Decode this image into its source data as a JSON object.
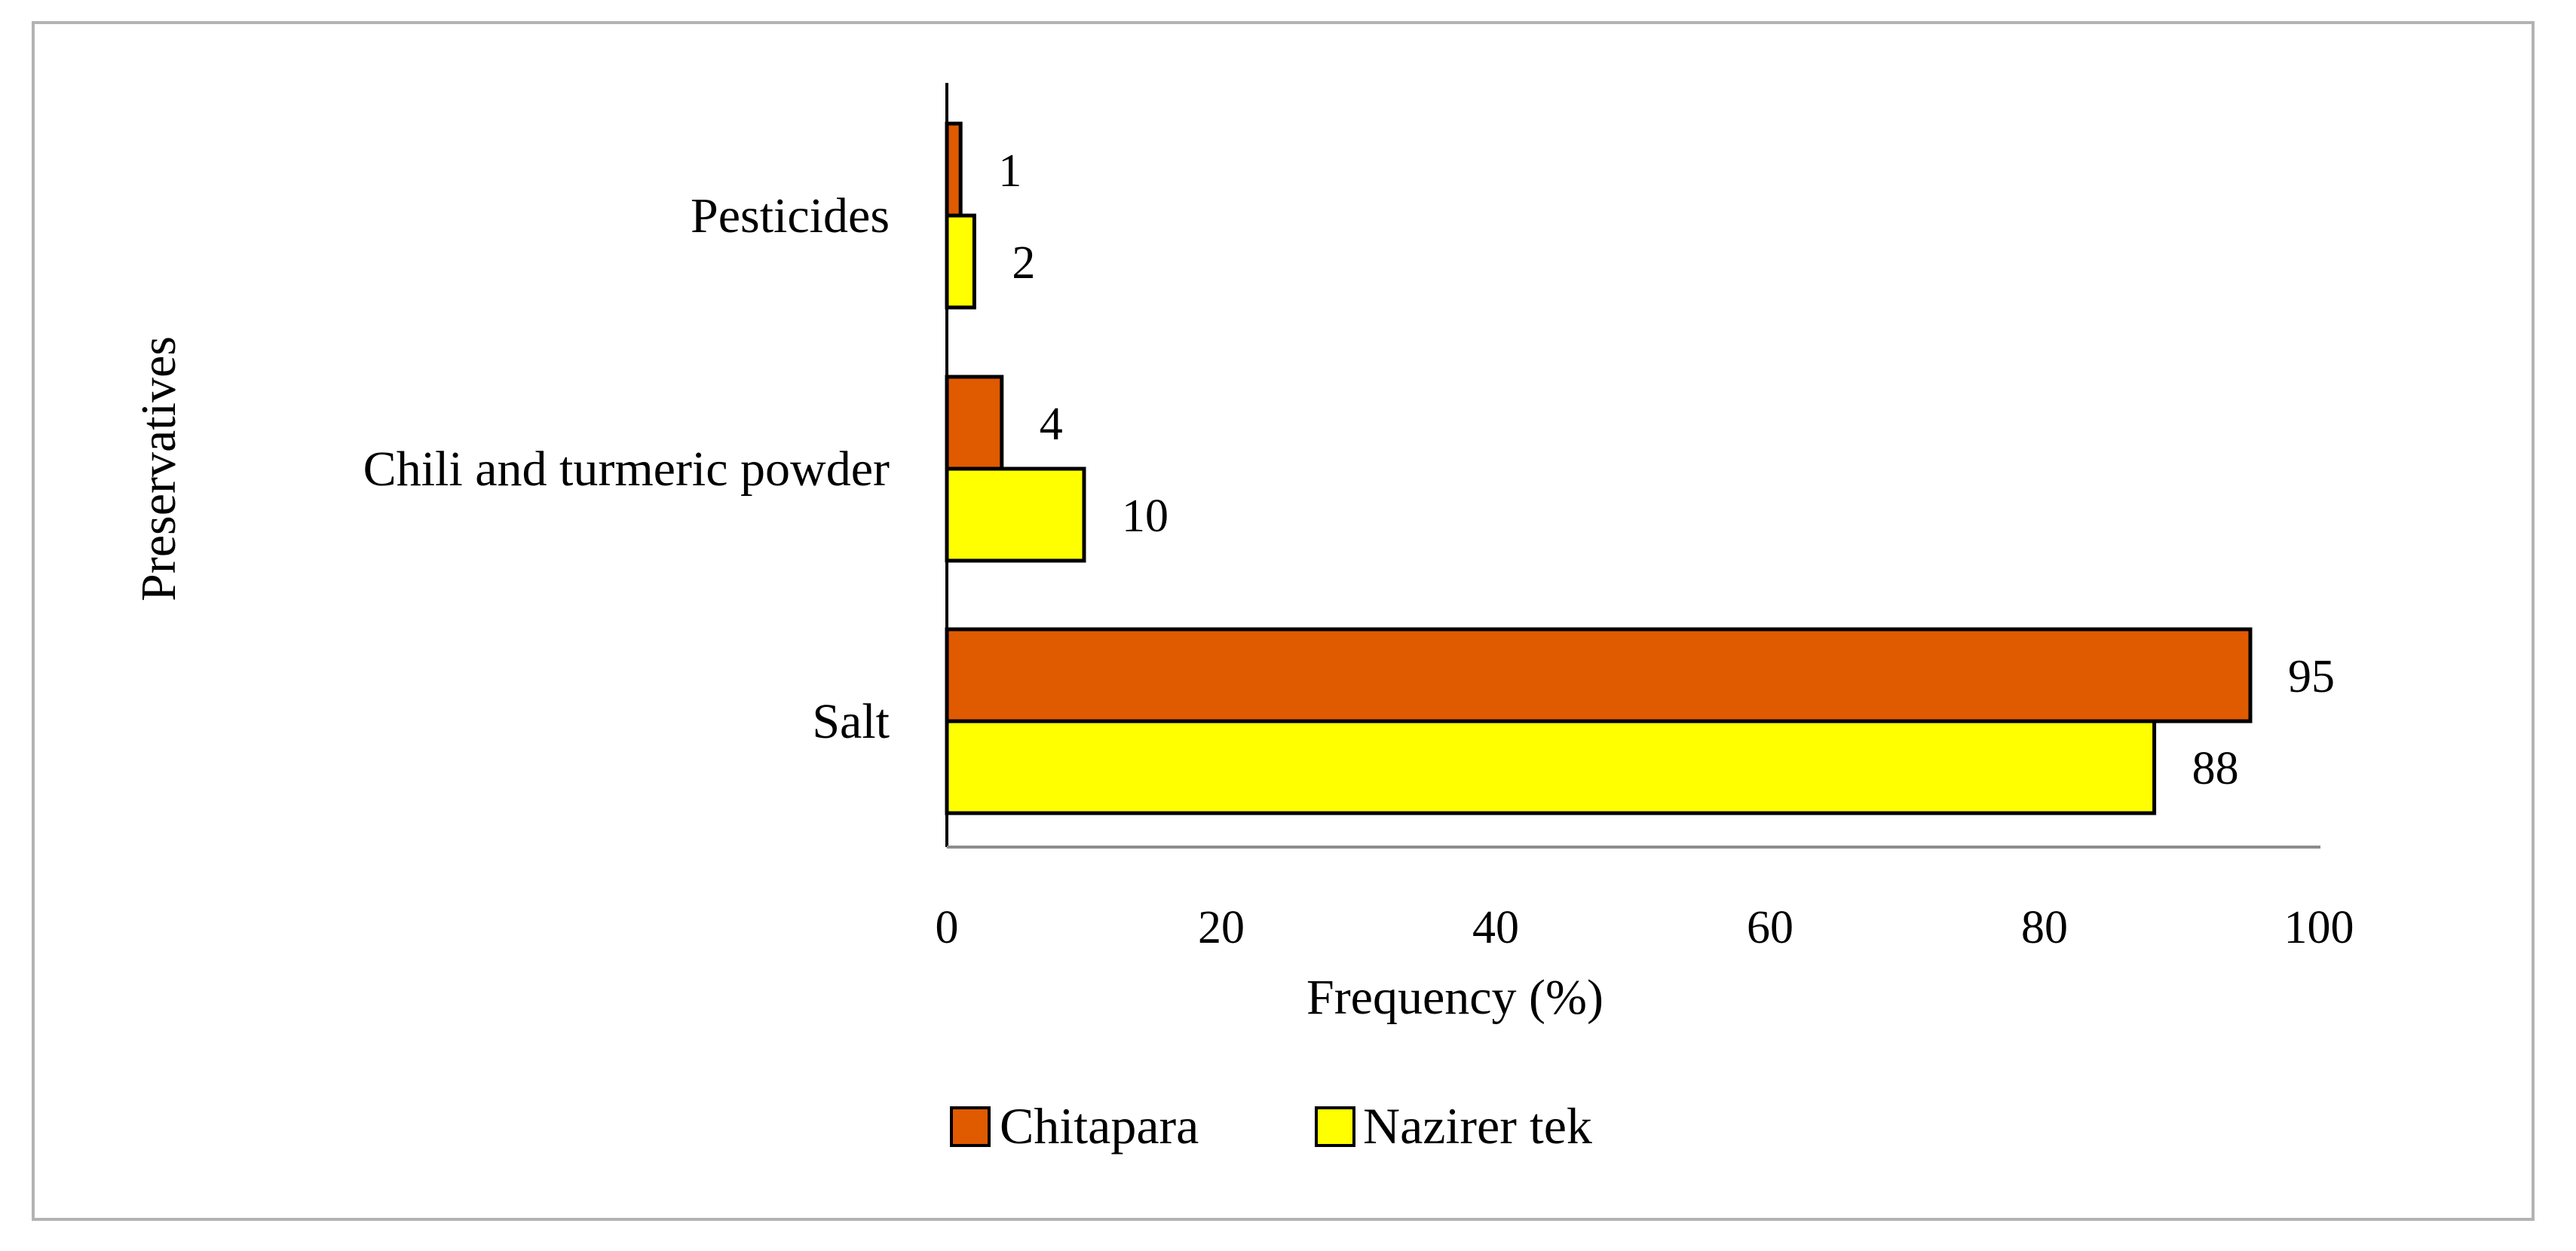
{
  "chart_data": {
    "type": "bar",
    "orientation": "horizontal",
    "categories": [
      "Salt",
      "Chili and turmeric powder",
      "Pesticides"
    ],
    "series": [
      {
        "name": "Chitapara",
        "values": [
          95,
          4,
          1
        ],
        "color": "#e05a00"
      },
      {
        "name": "Nazirer tek",
        "values": [
          88,
          10,
          2
        ],
        "color": "#ffff00"
      }
    ],
    "xlabel": "Frequency (%)",
    "ylabel": "Preservatives",
    "xlim": [
      0,
      100
    ],
    "xticks": [
      0,
      20,
      40,
      60,
      80,
      100
    ],
    "grid": false,
    "legend_position": "bottom"
  }
}
